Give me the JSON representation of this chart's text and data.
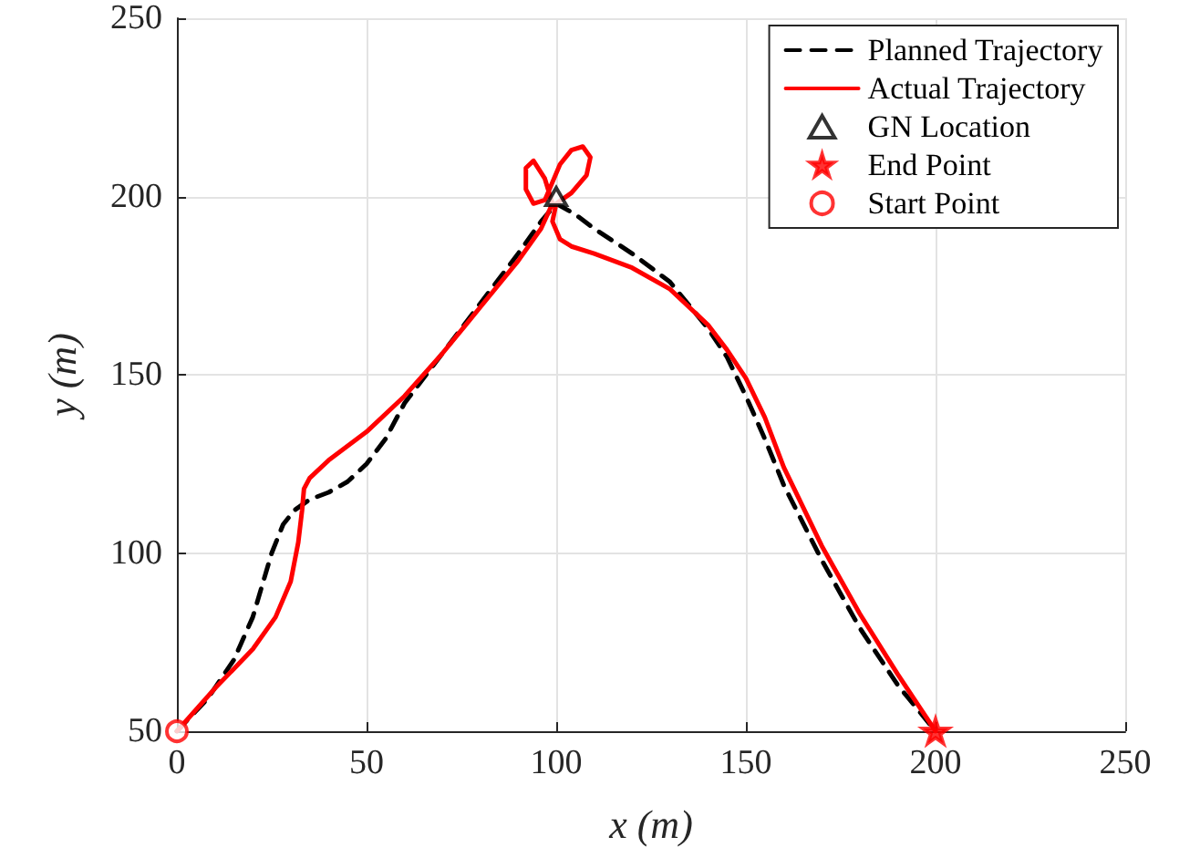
{
  "chart_data": {
    "type": "line",
    "xlabel": "x (m)",
    "ylabel": "y (m)",
    "xlim": [
      0,
      250
    ],
    "xticks": [
      0,
      50,
      100,
      150,
      200,
      250
    ],
    "ylim": [
      50,
      250
    ],
    "yticks": [
      50,
      100,
      150,
      200,
      250
    ],
    "grid": true,
    "legend": "top right",
    "series": [
      {
        "name": "Planned Trajectory",
        "line_style": "dashed",
        "marker": "none",
        "color": "#000000",
        "x": [
          0,
          8,
          15,
          20,
          25,
          28,
          31,
          35,
          40,
          45,
          50,
          55,
          60,
          70,
          80,
          90,
          96,
          100,
          105,
          110,
          120,
          130,
          140,
          145,
          150,
          155,
          160,
          170,
          180,
          190,
          200
        ],
        "values": [
          50,
          59,
          70,
          82,
          100,
          108,
          112,
          115,
          117,
          120,
          125,
          132,
          142,
          156,
          170,
          184,
          193,
          198,
          195,
          191,
          184,
          176,
          163,
          155,
          144,
          132,
          119,
          98,
          79,
          63,
          50
        ]
      },
      {
        "name": "Actual Trajectory",
        "line_style": "solid",
        "marker": "none",
        "color": "#ff0000",
        "x": [
          0,
          10,
          20,
          26,
          30,
          32,
          33,
          33.5,
          35,
          40,
          50,
          60,
          70,
          80,
          90,
          96,
          99,
          97,
          94,
          92,
          92,
          94,
          97,
          99,
          101,
          104,
          107,
          109,
          108,
          104,
          100,
          99,
          101,
          104,
          110,
          120,
          130,
          140,
          145,
          150,
          155,
          160,
          170,
          180,
          190,
          200
        ],
        "values": [
          50,
          62,
          73,
          82,
          92,
          103,
          112,
          118,
          121,
          126,
          134,
          144,
          156,
          169,
          182,
          191,
          198,
          205,
          210,
          208,
          202,
          198,
          199,
          204,
          209,
          213,
          214,
          211,
          206,
          201,
          198,
          193,
          188,
          186,
          184,
          180,
          174,
          164,
          157,
          149,
          138,
          124,
          102,
          83,
          66,
          50
        ]
      },
      {
        "name": "GN Location",
        "type": "scatter",
        "marker": "triangle",
        "color": "#000000",
        "x": [
          100
        ],
        "values": [
          200
        ]
      },
      {
        "name": "End Point",
        "type": "scatter",
        "marker": "star",
        "color": "#ff0000",
        "x": [
          200
        ],
        "values": [
          50
        ]
      },
      {
        "name": "Start Point",
        "type": "scatter",
        "marker": "circle",
        "color": "#ff0000",
        "x": [
          0
        ],
        "values": [
          50
        ]
      }
    ]
  }
}
